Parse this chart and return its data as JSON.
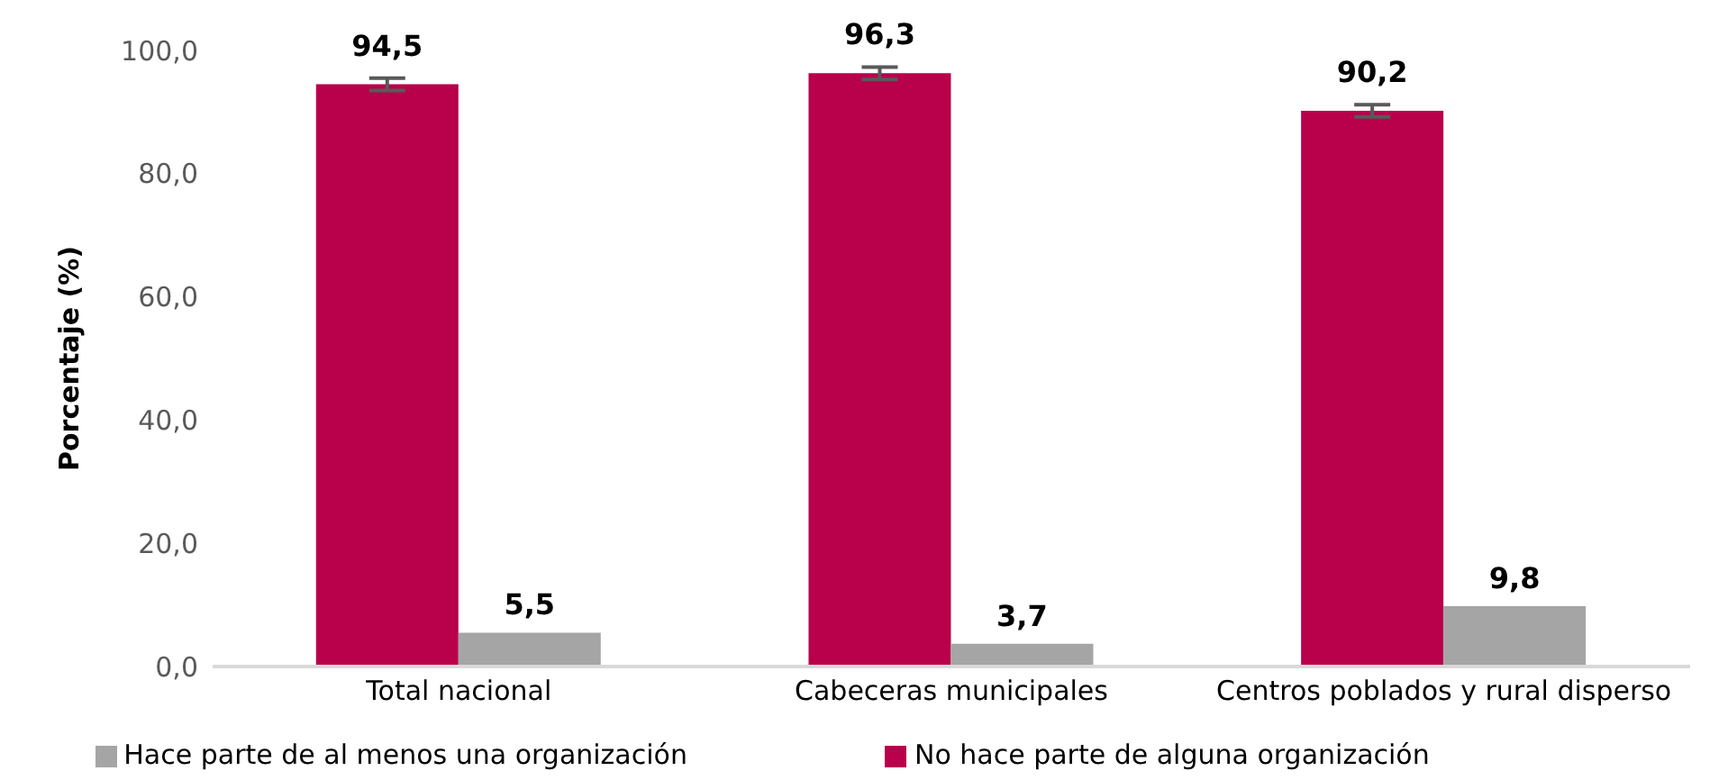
{
  "chart_data": {
    "type": "bar",
    "categories": [
      "Total nacional",
      "Cabeceras municipales",
      "Centros poblados y rural disperso"
    ],
    "series": [
      {
        "name": "No hace parte de alguna organización",
        "color": "#b9004b",
        "values": [
          94.5,
          96.3,
          90.2
        ],
        "errors": [
          1.0,
          1.0,
          1.0
        ],
        "value_labels": [
          "94,5",
          "96,3",
          "90,2"
        ]
      },
      {
        "name": "Hace parte de al menos una organización",
        "color": "#a5a5a5",
        "values": [
          5.5,
          3.7,
          9.8
        ],
        "value_labels": [
          "5,5",
          "3,7",
          "9,8"
        ]
      }
    ],
    "ylabel": "Porcentaje (%)",
    "ylim": [
      0,
      100
    ],
    "yticks": [
      {
        "value": 0,
        "label": "0,0"
      },
      {
        "value": 20,
        "label": "20,0"
      },
      {
        "value": 40,
        "label": "40,0"
      },
      {
        "value": 60,
        "label": "60,0"
      },
      {
        "value": 80,
        "label": "80,0"
      },
      {
        "value": 100,
        "label": "100,0"
      }
    ],
    "grid": false,
    "legend": "bottom"
  }
}
